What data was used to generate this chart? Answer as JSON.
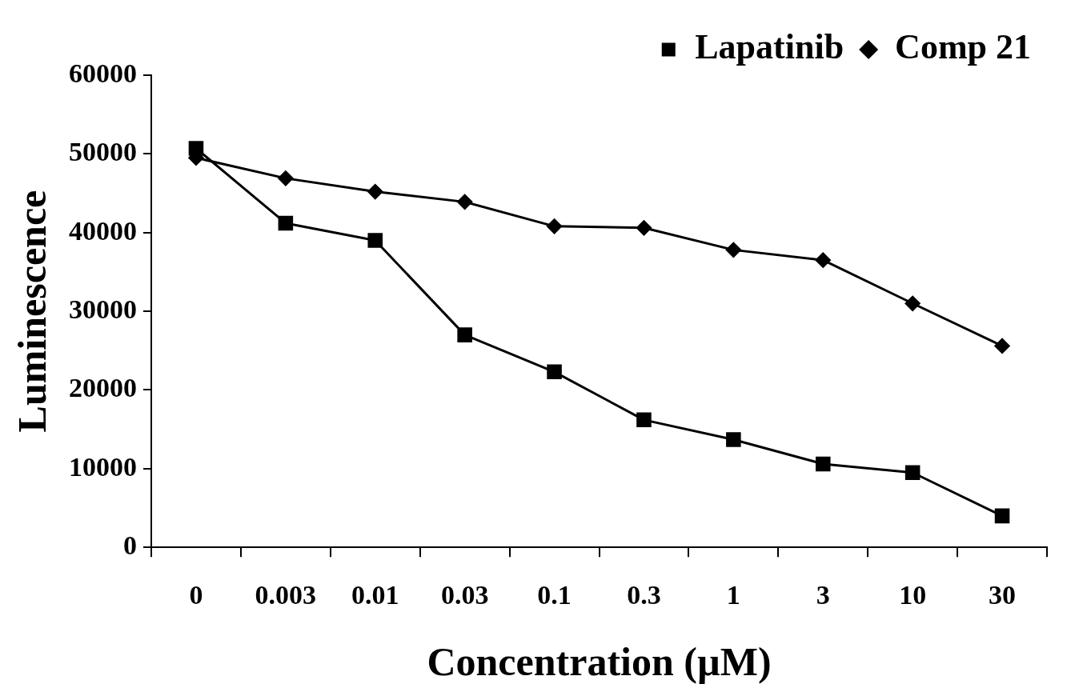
{
  "chart_data": {
    "type": "line",
    "xlabel": "Concentration (µM)",
    "ylabel": "Luminescence",
    "categories": [
      "0",
      "0.003",
      "0.01",
      "0.03",
      "0.1",
      "0.3",
      "1",
      "3",
      "10",
      "30"
    ],
    "series": [
      {
        "name": "Lapatinib",
        "color": "#000000",
        "marker": "square",
        "values": [
          50700,
          41200,
          39000,
          27000,
          22300,
          16200,
          13700,
          10600,
          9500,
          4000
        ]
      },
      {
        "name": "Comp 21",
        "color": "#000000",
        "marker": "diamond",
        "values": [
          49500,
          46900,
          45200,
          43900,
          40800,
          40600,
          37800,
          36500,
          31000,
          25600
        ]
      }
    ],
    "ylim": [
      0,
      60000
    ],
    "yticks": [
      0,
      10000,
      20000,
      30000,
      40000,
      50000,
      60000
    ],
    "grid": false,
    "legend": "top right",
    "line_style": "solid"
  }
}
